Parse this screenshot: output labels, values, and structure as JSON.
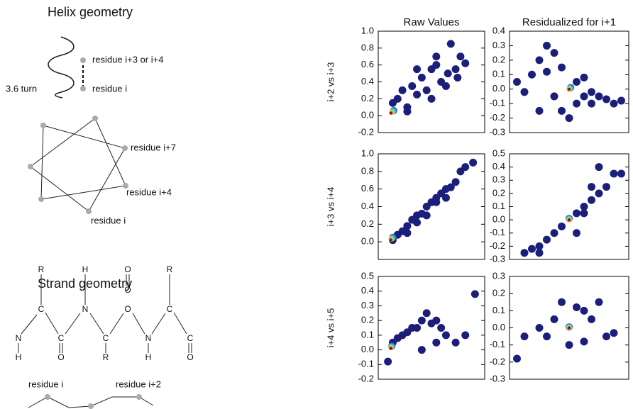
{
  "diagram": {
    "helix_title": "Helix geometry",
    "helix_upper": "residue i+3 or i+4",
    "helix_turn": "3.6 turn",
    "helix_lower": "residue i",
    "wheel_labels": [
      "residue i+7",
      "residue i+4",
      "residue i"
    ],
    "strand_title": "Strand geometry",
    "atoms": [
      "R",
      "H",
      "O",
      "R",
      "C",
      "N",
      "O",
      "C",
      "N",
      "C",
      "C",
      "N",
      "C",
      "H",
      "O",
      "R",
      "H",
      "O"
    ],
    "strand_labels": [
      "residue i",
      "residue i+2"
    ]
  },
  "chart_data": [
    {
      "type": "scatter",
      "title": "Raw Values",
      "ylabel": "i+2 vs i+3",
      "xlim": [
        -0.1,
        1.0
      ],
      "ylim": [
        -0.2,
        1.0
      ],
      "yticks": [
        -0.2,
        {
          "value": 0,
          "label": "0.0"
        },
        0.2,
        0.4,
        0.6,
        0.8,
        {
          "value": 1,
          "label": "1.0"
        }
      ],
      "series": [
        {
          "color": "#1b1f7a",
          "x": [
            0.05,
            0.1,
            0.15,
            0.2,
            0.25,
            0.3,
            0.35,
            0.4,
            0.45,
            0.5,
            0.55,
            0.6,
            0.65,
            0.7,
            0.75,
            0.8,
            0.5,
            0.3,
            0.2,
            0.45,
            0.62,
            0.72
          ],
          "values": [
            0.15,
            0.2,
            0.3,
            0.1,
            0.35,
            0.25,
            0.45,
            0.3,
            0.55,
            0.6,
            0.4,
            0.35,
            0.85,
            0.55,
            0.7,
            0.62,
            0.7,
            0.55,
            0.05,
            0.2,
            0.5,
            0.45
          ]
        },
        {
          "color": "#2f6fd0",
          "x": [
            0.06
          ],
          "values": [
            0.06
          ]
        },
        {
          "color": "#3fd0e0",
          "x": [
            0.05
          ],
          "values": [
            0.05
          ]
        },
        {
          "color": "#c8e040",
          "x": [
            0.04
          ],
          "values": [
            0.04
          ]
        },
        {
          "color": "#f07a20",
          "x": [
            0.035
          ],
          "values": [
            0.035
          ]
        },
        {
          "color": "#9b0d0d",
          "x": [
            0.03
          ],
          "values": [
            0.03
          ]
        }
      ]
    },
    {
      "type": "scatter",
      "title": "Residualized for i+1",
      "xlim": [
        -0.4,
        0.4
      ],
      "ylim": [
        -0.3,
        0.4
      ],
      "yticks": [
        -0.3,
        -0.2,
        -0.1,
        {
          "value": 0,
          "label": "0.0"
        },
        0.1,
        0.2,
        0.3,
        0.4
      ],
      "series": [
        {
          "color": "#1b1f7a",
          "x": [
            -0.35,
            -0.3,
            -0.25,
            -0.2,
            -0.15,
            -0.1,
            -0.05,
            0.05,
            0.1,
            0.15,
            0.2,
            0.25,
            0.3,
            0.35,
            -0.1,
            -0.05,
            0.0,
            0.05,
            -0.2,
            0.1,
            0.15,
            -0.15
          ],
          "values": [
            0.05,
            -0.02,
            0.1,
            0.2,
            0.3,
            0.25,
            0.15,
            0.05,
            -0.05,
            -0.02,
            -0.05,
            -0.07,
            -0.1,
            -0.08,
            -0.05,
            -0.15,
            -0.2,
            -0.1,
            -0.15,
            0.08,
            -0.1,
            0.12
          ]
        },
        {
          "color": "#2f6fd0",
          "x": [
            0.01
          ],
          "values": [
            0.01
          ]
        },
        {
          "color": "#3fd0e0",
          "x": [
            0.005
          ],
          "values": [
            0.005
          ]
        },
        {
          "color": "#c8e040",
          "x": [
            0.0
          ],
          "values": [
            0.0
          ]
        },
        {
          "color": "#f07a20",
          "x": [
            0.0
          ],
          "values": [
            -0.003
          ]
        },
        {
          "color": "#9b0d0d",
          "x": [
            0.0
          ],
          "values": [
            0.0
          ]
        }
      ]
    },
    {
      "type": "scatter",
      "ylabel": "i+3 vs i+4",
      "xlim": [
        -0.1,
        1.0
      ],
      "ylim": [
        -0.2,
        1.0
      ],
      "yticks": [
        {
          "value": 0,
          "label": "0.0"
        },
        0.2,
        0.4,
        0.6,
        0.8,
        {
          "value": 1,
          "label": "1.0"
        }
      ],
      "series": [
        {
          "color": "#1b1f7a",
          "x": [
            0.05,
            0.1,
            0.15,
            0.2,
            0.25,
            0.3,
            0.35,
            0.4,
            0.45,
            0.5,
            0.55,
            0.6,
            0.65,
            0.7,
            0.75,
            0.8,
            0.88,
            0.4,
            0.5,
            0.3,
            0.6,
            0.2
          ],
          "values": [
            0.02,
            0.08,
            0.12,
            0.18,
            0.25,
            0.3,
            0.32,
            0.4,
            0.45,
            0.5,
            0.55,
            0.5,
            0.62,
            0.68,
            0.8,
            0.85,
            0.9,
            0.3,
            0.45,
            0.22,
            0.6,
            0.1
          ]
        },
        {
          "color": "#2f6fd0",
          "x": [
            0.05
          ],
          "values": [
            0.05
          ]
        },
        {
          "color": "#3fd0e0",
          "x": [
            0.04
          ],
          "values": [
            0.04
          ]
        },
        {
          "color": "#c8e040",
          "x": [
            0.035
          ],
          "values": [
            0.03
          ]
        },
        {
          "color": "#f07a20",
          "x": [
            0.03
          ],
          "values": [
            0.025
          ]
        },
        {
          "color": "#9b0d0d",
          "x": [
            0.03
          ],
          "values": [
            0.02
          ]
        }
      ]
    },
    {
      "type": "scatter",
      "xlim": [
        -0.4,
        0.4
      ],
      "ylim": [
        -0.3,
        0.5
      ],
      "yticks": [
        -0.3,
        -0.2,
        -0.1,
        {
          "value": 0,
          "label": "0.0"
        },
        0.1,
        0.2,
        0.3,
        0.4,
        0.5
      ],
      "series": [
        {
          "color": "#1b1f7a",
          "x": [
            -0.3,
            -0.25,
            -0.2,
            -0.15,
            -0.1,
            -0.05,
            0.05,
            0.1,
            0.15,
            0.2,
            0.25,
            0.3,
            0.35,
            0.1,
            0.2,
            -0.2,
            0.15,
            0.05
          ],
          "values": [
            -0.25,
            -0.22,
            -0.2,
            -0.15,
            -0.1,
            -0.05,
            0.05,
            0.1,
            0.15,
            0.2,
            0.25,
            0.35,
            0.35,
            0.05,
            0.4,
            -0.25,
            0.25,
            -0.1
          ]
        },
        {
          "color": "#2f6fd0",
          "x": [
            0.0
          ],
          "values": [
            0.01
          ]
        },
        {
          "color": "#3fd0e0",
          "x": [
            0.0
          ],
          "values": [
            0.005
          ]
        },
        {
          "color": "#c8e040",
          "x": [
            0.0
          ],
          "values": [
            0.0
          ]
        },
        {
          "color": "#f07a20",
          "x": [
            0.0
          ],
          "values": [
            -0.003
          ]
        },
        {
          "color": "#9b0d0d",
          "x": [
            0.0
          ],
          "values": [
            0.0
          ]
        }
      ]
    },
    {
      "type": "scatter",
      "ylabel": "i+4 vs i+5",
      "xlim": [
        -0.1,
        1.0
      ],
      "ylim": [
        -0.2,
        0.5
      ],
      "yticks": [
        -0.2,
        -0.1,
        {
          "value": 0,
          "label": "0.0"
        },
        0.1,
        0.2,
        0.3,
        0.4,
        0.5
      ],
      "series": [
        {
          "color": "#1b1f7a",
          "x": [
            0.0,
            0.05,
            0.1,
            0.15,
            0.2,
            0.25,
            0.3,
            0.35,
            0.4,
            0.45,
            0.5,
            0.55,
            0.6,
            0.7,
            0.8,
            0.9,
            0.35,
            0.5
          ],
          "values": [
            -0.08,
            0.05,
            0.08,
            0.1,
            0.12,
            0.15,
            0.15,
            0.2,
            0.25,
            0.18,
            0.2,
            0.15,
            0.1,
            0.05,
            0.1,
            0.38,
            0.0,
            0.05
          ]
        },
        {
          "color": "#2f6fd0",
          "x": [
            0.04
          ],
          "values": [
            0.025
          ]
        },
        {
          "color": "#3fd0e0",
          "x": [
            0.035
          ],
          "values": [
            0.02
          ]
        },
        {
          "color": "#c8e040",
          "x": [
            0.03
          ],
          "values": [
            0.015
          ]
        },
        {
          "color": "#f07a20",
          "x": [
            0.03
          ],
          "values": [
            0.012
          ]
        },
        {
          "color": "#9b0d0d",
          "x": [
            0.03
          ],
          "values": [
            0.01
          ]
        }
      ]
    },
    {
      "type": "scatter",
      "xlim": [
        -0.4,
        0.4
      ],
      "ylim": [
        -0.3,
        0.3
      ],
      "yticks": [
        -0.3,
        -0.2,
        -0.1,
        {
          "value": 0,
          "label": "0.0"
        },
        0.1,
        0.2,
        0.3
      ],
      "series": [
        {
          "color": "#1b1f7a",
          "x": [
            -0.35,
            -0.3,
            -0.2,
            -0.1,
            -0.05,
            0.05,
            0.1,
            0.15,
            0.2,
            0.25,
            0.3,
            0.0,
            0.1,
            -0.15
          ],
          "values": [
            -0.18,
            -0.05,
            0.0,
            0.05,
            0.15,
            0.12,
            0.1,
            0.05,
            0.15,
            -0.05,
            -0.03,
            -0.1,
            -0.08,
            -0.05
          ]
        },
        {
          "color": "#2f6fd0",
          "x": [
            0.0
          ],
          "values": [
            0.005
          ]
        },
        {
          "color": "#3fd0e0",
          "x": [
            0.0
          ],
          "values": [
            0.003
          ]
        },
        {
          "color": "#c8e040",
          "x": [
            0.0
          ],
          "values": [
            0.0
          ]
        },
        {
          "color": "#f07a20",
          "x": [
            0.0
          ],
          "values": [
            -0.002
          ]
        },
        {
          "color": "#9b0d0d",
          "x": [
            0.0
          ],
          "values": [
            0.0
          ]
        }
      ]
    }
  ]
}
